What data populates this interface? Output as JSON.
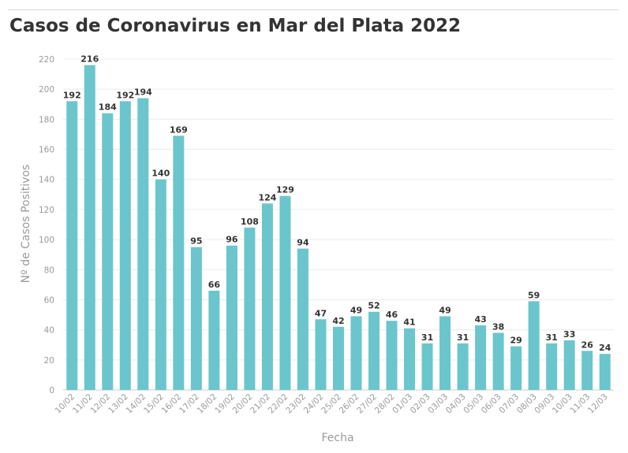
{
  "chart_data": {
    "type": "bar",
    "title": "Casos de Coronavirus en Mar del Plata 2022",
    "xlabel": "Fecha",
    "ylabel": "Nº de Casos Positivos",
    "ylim": [
      0,
      220
    ],
    "yticks": [
      0,
      20,
      40,
      60,
      80,
      100,
      120,
      140,
      160,
      180,
      200,
      220
    ],
    "grid": true,
    "bar_color": "#6bc5cc",
    "categories": [
      "10/02",
      "11/02",
      "12/02",
      "13/02",
      "14/02",
      "15/02",
      "16/02",
      "17/02",
      "18/02",
      "19/02",
      "20/02",
      "21/02",
      "22/02",
      "23/02",
      "24/02",
      "25/02",
      "26/02",
      "27/02",
      "28/02",
      "01/03",
      "02/03",
      "03/03",
      "04/03",
      "05/03",
      "06/03",
      "07/03",
      "08/03",
      "09/03",
      "10/03",
      "11/03",
      "12/03"
    ],
    "values": [
      192,
      216,
      184,
      192,
      194,
      140,
      169,
      95,
      66,
      96,
      108,
      124,
      129,
      94,
      47,
      42,
      49,
      52,
      46,
      41,
      31,
      49,
      31,
      43,
      38,
      29,
      59,
      31,
      33,
      26,
      24
    ]
  }
}
